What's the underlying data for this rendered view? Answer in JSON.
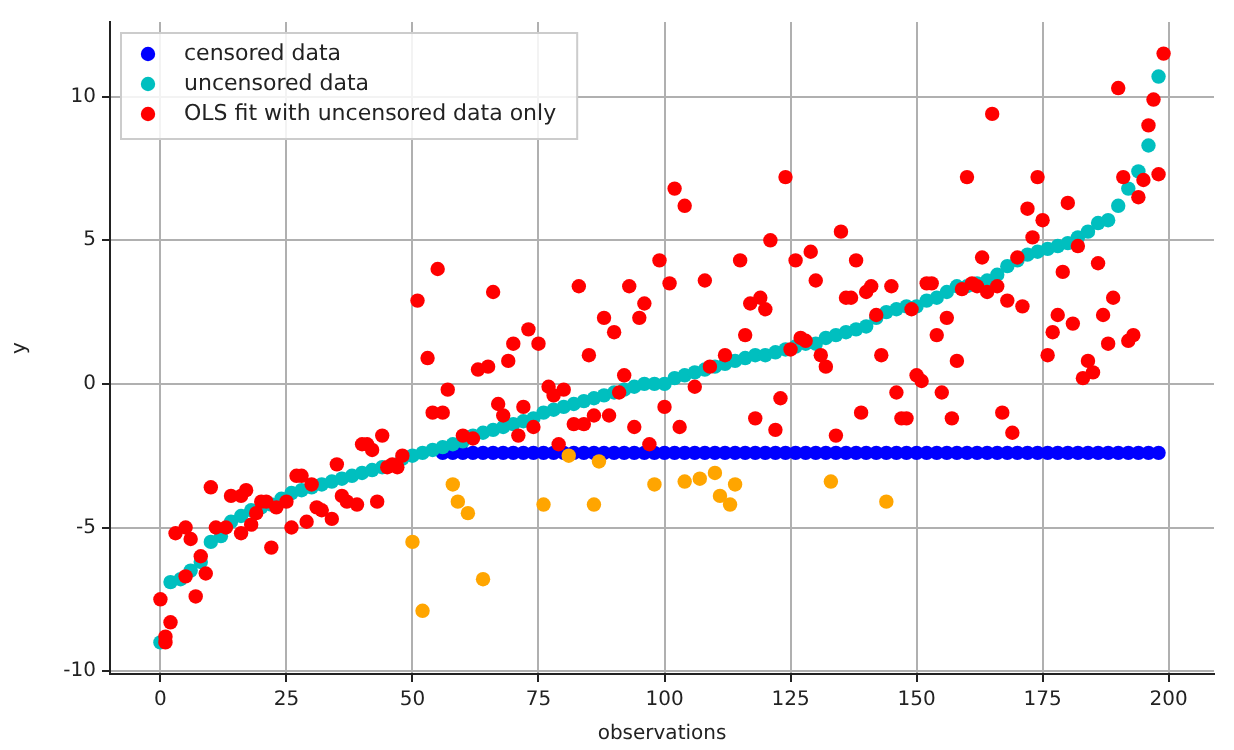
{
  "chart_data": {
    "type": "scatter",
    "xlabel": "observations",
    "ylabel": "y",
    "xlim": [
      -10,
      209
    ],
    "ylim": [
      -10.1,
      12.6
    ],
    "xticks": [
      0,
      25,
      50,
      75,
      100,
      125,
      150,
      175,
      200
    ],
    "yticks": [
      -10,
      -5,
      0,
      5,
      10
    ],
    "grid": true,
    "legend": "top left",
    "marker": "circle",
    "series": [
      {
        "name": "censored data",
        "color": "#0000ff",
        "x": [
          56,
          58,
          60,
          62,
          64,
          66,
          68,
          70,
          72,
          74,
          76,
          78,
          80,
          82,
          84,
          86,
          88,
          90,
          92,
          94,
          96,
          98,
          100,
          102,
          104,
          106,
          108,
          110,
          112,
          114,
          116,
          118,
          120,
          122,
          124,
          126,
          128,
          130,
          132,
          134,
          136,
          138,
          140,
          142,
          144,
          146,
          148,
          150,
          152,
          154,
          156,
          158,
          160,
          162,
          164,
          166,
          168,
          170,
          172,
          174,
          176,
          178,
          180,
          182,
          184,
          186,
          188,
          190,
          192,
          194,
          196,
          198
        ],
        "values": [
          -2.4,
          -2.4,
          -2.4,
          -2.4,
          -2.4,
          -2.4,
          -2.4,
          -2.4,
          -2.4,
          -2.4,
          -2.4,
          -2.4,
          -2.4,
          -2.4,
          -2.4,
          -2.4,
          -2.4,
          -2.4,
          -2.4,
          -2.4,
          -2.4,
          -2.4,
          -2.4,
          -2.4,
          -2.4,
          -2.4,
          -2.4,
          -2.4,
          -2.4,
          -2.4,
          -2.4,
          -2.4,
          -2.4,
          -2.4,
          -2.4,
          -2.4,
          -2.4,
          -2.4,
          -2.4,
          -2.4,
          -2.4,
          -2.4,
          -2.4,
          -2.4,
          -2.4,
          -2.4,
          -2.4,
          -2.4,
          -2.4,
          -2.4,
          -2.4,
          -2.4,
          -2.4,
          -2.4,
          -2.4,
          -2.4,
          -2.4,
          -2.4,
          -2.4,
          -2.4,
          -2.4,
          -2.4,
          -2.4,
          -2.4,
          -2.4,
          -2.4,
          -2.4,
          -2.4,
          -2.4,
          -2.4,
          -2.4,
          -2.4
        ]
      },
      {
        "name": "uncensored data",
        "color": "#00bfbf",
        "x": [
          0,
          2,
          4,
          6,
          8,
          10,
          12,
          14,
          16,
          18,
          20,
          22,
          24,
          26,
          28,
          30,
          32,
          34,
          36,
          38,
          40,
          42,
          44,
          48,
          50,
          52,
          54,
          56,
          58,
          60,
          62,
          64,
          66,
          68,
          70,
          72,
          74,
          76,
          78,
          80,
          82,
          84,
          86,
          88,
          90,
          92,
          94,
          96,
          98,
          100,
          102,
          104,
          106,
          108,
          110,
          112,
          114,
          116,
          118,
          120,
          122,
          124,
          126,
          128,
          130,
          132,
          134,
          136,
          138,
          140,
          142,
          144,
          146,
          148,
          150,
          152,
          154,
          156,
          158,
          160,
          162,
          164,
          166,
          168,
          170,
          172,
          174,
          176,
          178,
          180,
          182,
          184,
          186,
          188,
          190,
          192,
          194,
          196,
          198
        ],
        "values": [
          -9.0,
          -6.9,
          -6.8,
          -6.5,
          -6.2,
          -5.5,
          -5.3,
          -4.8,
          -4.6,
          -4.4,
          -4.3,
          -4.2,
          -4.0,
          -3.8,
          -3.7,
          -3.6,
          -3.5,
          -3.4,
          -3.3,
          -3.2,
          -3.1,
          -3.0,
          -2.9,
          -2.6,
          -2.5,
          -2.4,
          -2.3,
          -2.2,
          -2.1,
          -2.0,
          -1.8,
          -1.7,
          -1.6,
          -1.5,
          -1.4,
          -1.3,
          -1.2,
          -1.0,
          -0.9,
          -0.8,
          -0.7,
          -0.6,
          -0.5,
          -0.4,
          -0.3,
          -0.2,
          -0.1,
          0.0,
          0.0,
          0.0,
          0.2,
          0.3,
          0.4,
          0.5,
          0.6,
          0.7,
          0.8,
          0.9,
          1.0,
          1.0,
          1.1,
          1.2,
          1.3,
          1.4,
          1.4,
          1.6,
          1.7,
          1.8,
          1.9,
          2.0,
          2.3,
          2.5,
          2.6,
          2.7,
          2.7,
          2.9,
          3.0,
          3.2,
          3.4,
          3.4,
          3.5,
          3.6,
          3.8,
          4.1,
          4.3,
          4.5,
          4.6,
          4.7,
          4.8,
          4.9,
          5.1,
          5.3,
          5.6,
          5.7,
          6.2,
          6.8,
          7.4,
          8.3,
          10.7
        ]
      },
      {
        "name": "OLS fit with uncensored data only",
        "color": "#ff0000",
        "x": [
          0,
          1,
          1,
          2,
          3,
          5,
          5,
          6,
          7,
          8,
          9,
          10,
          11,
          13,
          14,
          16,
          16,
          17,
          18,
          19,
          20,
          21,
          22,
          23,
          25,
          26,
          27,
          28,
          29,
          30,
          31,
          32,
          34,
          35,
          36,
          37,
          39,
          40,
          41,
          42,
          43,
          44,
          45,
          46,
          47,
          48,
          51,
          53,
          54,
          55,
          56,
          57,
          60,
          62,
          63,
          65,
          66,
          67,
          68,
          69,
          70,
          71,
          72,
          73,
          74,
          75,
          77,
          78,
          79,
          80,
          82,
          83,
          84,
          85,
          86,
          88,
          89,
          90,
          91,
          92,
          93,
          94,
          95,
          96,
          97,
          99,
          100,
          101,
          102,
          103,
          104,
          106,
          108,
          109,
          112,
          115,
          116,
          117,
          118,
          119,
          120,
          121,
          122,
          123,
          124,
          125,
          126,
          127,
          128,
          129,
          130,
          131,
          132,
          134,
          135,
          136,
          137,
          138,
          139,
          140,
          141,
          142,
          143,
          145,
          146,
          147,
          148,
          149,
          150,
          151,
          152,
          153,
          154,
          155,
          156,
          157,
          158,
          159,
          160,
          161,
          162,
          163,
          164,
          165,
          166,
          167,
          168,
          169,
          170,
          171,
          172,
          173,
          174,
          175,
          176,
          177,
          178,
          179,
          180,
          181,
          182,
          183,
          184,
          185,
          186,
          187,
          188,
          189,
          190,
          191,
          192,
          193,
          194,
          195,
          196,
          197,
          198,
          199
        ],
        "values": [
          -7.5,
          -8.8,
          -9.0,
          -8.3,
          -5.2,
          -5.0,
          -6.7,
          -5.4,
          -7.4,
          -6.0,
          -6.6,
          -3.6,
          -5.0,
          -5.0,
          -3.9,
          -5.2,
          -3.9,
          -3.7,
          -4.9,
          -4.5,
          -4.1,
          -4.1,
          -5.7,
          -4.3,
          -4.1,
          -5.0,
          -3.2,
          -3.2,
          -4.8,
          -3.5,
          -4.3,
          -4.4,
          -4.7,
          -2.8,
          -3.9,
          -4.1,
          -4.2,
          -2.1,
          -2.1,
          -2.3,
          -4.1,
          -1.8,
          -2.9,
          -2.8,
          -2.9,
          -2.5,
          2.9,
          0.9,
          -1.0,
          4.0,
          -1.0,
          -0.2,
          -1.8,
          -1.9,
          0.5,
          0.6,
          3.2,
          -0.7,
          -1.1,
          0.8,
          1.4,
          -1.8,
          -0.8,
          1.9,
          -1.5,
          1.4,
          -0.1,
          -0.4,
          -2.1,
          -0.2,
          -1.4,
          3.4,
          -1.4,
          1.0,
          -1.1,
          2.3,
          -1.1,
          1.8,
          -0.3,
          0.3,
          3.4,
          -1.5,
          2.3,
          2.8,
          -2.1,
          4.3,
          -0.8,
          3.5,
          6.8,
          -1.5,
          6.2,
          -0.1,
          3.6,
          0.6,
          1.0,
          4.3,
          1.7,
          2.8,
          -1.2,
          3.0,
          2.6,
          5.0,
          -1.6,
          -0.5,
          7.2,
          1.2,
          4.3,
          1.6,
          1.5,
          4.6,
          3.6,
          1.0,
          0.6,
          -1.8,
          5.3,
          3.0,
          3.0,
          4.3,
          -1.0,
          3.2,
          3.4,
          2.4,
          1.0,
          3.4,
          -0.3,
          -1.2,
          -1.2,
          2.6,
          0.3,
          0.1,
          3.5,
          3.5,
          1.7,
          -0.3,
          2.3,
          -1.2,
          0.8,
          3.3,
          7.2,
          3.5,
          3.4,
          4.4,
          3.2,
          9.4,
          3.4,
          -1.0,
          2.9,
          -1.7,
          4.4,
          2.7,
          6.1,
          5.1,
          7.2,
          5.7,
          1.0,
          1.8,
          2.4,
          3.9,
          6.3,
          2.1,
          4.8,
          0.2,
          0.8,
          0.4,
          4.2,
          2.4,
          1.4,
          3.0,
          10.3,
          7.2,
          1.5,
          1.7,
          6.5,
          7.1,
          9.0,
          9.9,
          7.3,
          11.5
        ]
      },
      {
        "color": "#ffa500",
        "x": [
          50,
          52,
          58,
          59,
          61,
          64,
          76,
          81,
          86,
          87,
          98,
          104,
          107,
          110,
          111,
          113,
          114,
          133,
          144
        ],
        "values": [
          -5.5,
          -7.9,
          -3.5,
          -4.1,
          -4.5,
          -6.8,
          -4.2,
          -2.5,
          -4.2,
          -2.7,
          -3.5,
          -3.4,
          -3.3,
          -3.1,
          -3.9,
          -4.2,
          -3.5,
          -3.4,
          -4.1
        ]
      }
    ]
  }
}
